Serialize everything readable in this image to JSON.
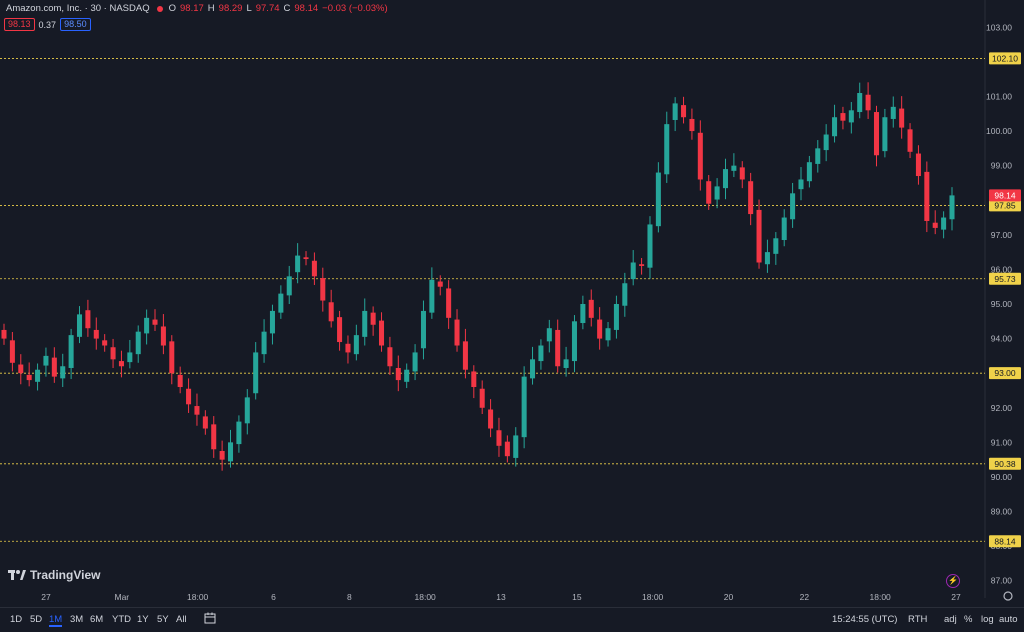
{
  "header": {
    "symbol_title": "Amazon.com, Inc. · 30 · NASDAQ",
    "o_label": "O",
    "o_value": "98.17",
    "h_label": "H",
    "h_value": "98.29",
    "l_label": "L",
    "l_value": "97.74",
    "c_label": "C",
    "c_value": "98.14",
    "change": "−0.03 (−0.03%)",
    "bid": "98.13",
    "spread": "0.37",
    "ask": "98.50"
  },
  "chart_data": {
    "type": "candlestick",
    "ylim": [
      86.5,
      103.5
    ],
    "y_ticks": [
      "103.00",
      "101.00",
      "100.00",
      "99.00",
      "97.00",
      "96.00",
      "95.00",
      "94.00",
      "93.00",
      "92.00",
      "91.00",
      "90.00",
      "89.00",
      "88.00",
      "87.00"
    ],
    "x_ticks": [
      "27",
      "Mar",
      "18:00",
      "6",
      "8",
      "18:00",
      "13",
      "15",
      "18:00",
      "20",
      "22",
      "18:00",
      "27"
    ],
    "horizontal_levels": [
      "102.10",
      "97.85",
      "95.73",
      "93.00",
      "90.38",
      "88.14"
    ],
    "last_price": "98.14",
    "closes": [
      94.0,
      93.3,
      93.0,
      92.8,
      93.1,
      93.5,
      92.9,
      93.2,
      94.1,
      94.7,
      94.3,
      94.0,
      93.8,
      93.4,
      93.2,
      93.6,
      94.2,
      94.6,
      94.4,
      93.8,
      93.0,
      92.6,
      92.1,
      91.8,
      91.4,
      90.8,
      90.5,
      91.0,
      91.6,
      92.3,
      93.6,
      94.2,
      94.8,
      95.3,
      95.8,
      96.4,
      96.3,
      95.8,
      95.1,
      94.5,
      93.9,
      93.6,
      94.1,
      94.8,
      94.4,
      93.8,
      93.2,
      92.8,
      93.1,
      93.6,
      94.8,
      95.7,
      95.5,
      94.6,
      93.8,
      93.1,
      92.6,
      92.0,
      91.4,
      90.9,
      90.6,
      91.2,
      92.9,
      93.4,
      93.8,
      94.3,
      93.2,
      93.4,
      94.5,
      95.0,
      94.6,
      94.0,
      94.3,
      95.0,
      95.6,
      96.2,
      96.1,
      97.3,
      98.8,
      100.2,
      100.8,
      100.4,
      100.0,
      98.6,
      97.9,
      98.4,
      98.9,
      99.0,
      98.6,
      97.6,
      96.2,
      96.5,
      96.9,
      97.5,
      98.2,
      98.6,
      99.1,
      99.5,
      99.9,
      100.4,
      100.3,
      100.6,
      101.1,
      100.6,
      99.3,
      100.4,
      100.7,
      100.1,
      99.4,
      98.7,
      97.4,
      97.2,
      97.5,
      98.14
    ],
    "markers": [],
    "time_label": "15:24:55 (UTC)"
  },
  "bottom": {
    "tf_1d": "1D",
    "tf_5d": "5D",
    "tf_1m": "1M",
    "tf_3m": "3M",
    "tf_6m": "6M",
    "tf_ytd": "YTD",
    "tf_1y": "1Y",
    "tf_5y": "5Y",
    "tf_all": "All",
    "time": "15:24:55 (UTC)",
    "session": "RTH",
    "adj": "adj",
    "percent": "%",
    "log": "log",
    "auto": "auto"
  },
  "brand": "TradingView",
  "colors": {
    "bg": "#161a25",
    "up": "#26a69a",
    "down": "#f23645",
    "level": "#f0d24a",
    "text": "#d1d4dc"
  },
  "icons": [
    "calendar-range-icon",
    "gear-icon",
    "lightning-icon",
    "tradingview-logo-icon"
  ]
}
